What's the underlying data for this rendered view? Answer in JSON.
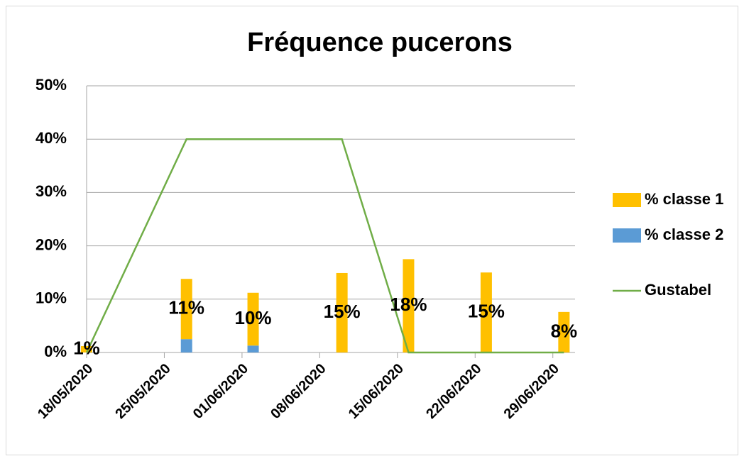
{
  "chart_data": {
    "type": "bar-line",
    "title": "Fréquence pucerons",
    "x": [
      "18/05/2020",
      "27/05/2020",
      "02/06/2020",
      "10/06/2020",
      "16/06/2020",
      "23/06/2020",
      "30/06/2020"
    ],
    "series": [
      {
        "name": "% classe 1",
        "type": "bar",
        "color": "#ffc000",
        "values": [
          1.2,
          11.3,
          9.9,
          14.9,
          17.5,
          15,
          7.6
        ],
        "value_labels": [
          "1%",
          "11%",
          "10%",
          "15%",
          "18%",
          "15%",
          "8%"
        ]
      },
      {
        "name": "% classe 2",
        "type": "bar",
        "color": "#5b9bd5",
        "values": [
          0,
          2.5,
          1.3,
          0,
          0,
          0,
          0
        ]
      },
      {
        "name": "Gustabel",
        "type": "line",
        "color": "#70ad47",
        "values": [
          0,
          40,
          40,
          40,
          0,
          0,
          0
        ]
      }
    ],
    "xlim": [
      "18/05/2020",
      "01/07/2020"
    ],
    "xticks": [
      "18/05/2020",
      "25/05/2020",
      "01/06/2020",
      "08/06/2020",
      "15/06/2020",
      "22/06/2020",
      "29/06/2020"
    ],
    "ylim": [
      0,
      50
    ],
    "yticks": [
      {
        "value": 0,
        "label": "0%"
      },
      {
        "value": 10,
        "label": "10%"
      },
      {
        "value": 20,
        "label": "20%"
      },
      {
        "value": 30,
        "label": "30%"
      },
      {
        "value": 40,
        "label": "40%"
      },
      {
        "value": 50,
        "label": "50%"
      }
    ],
    "grid": true,
    "legend": "right"
  }
}
